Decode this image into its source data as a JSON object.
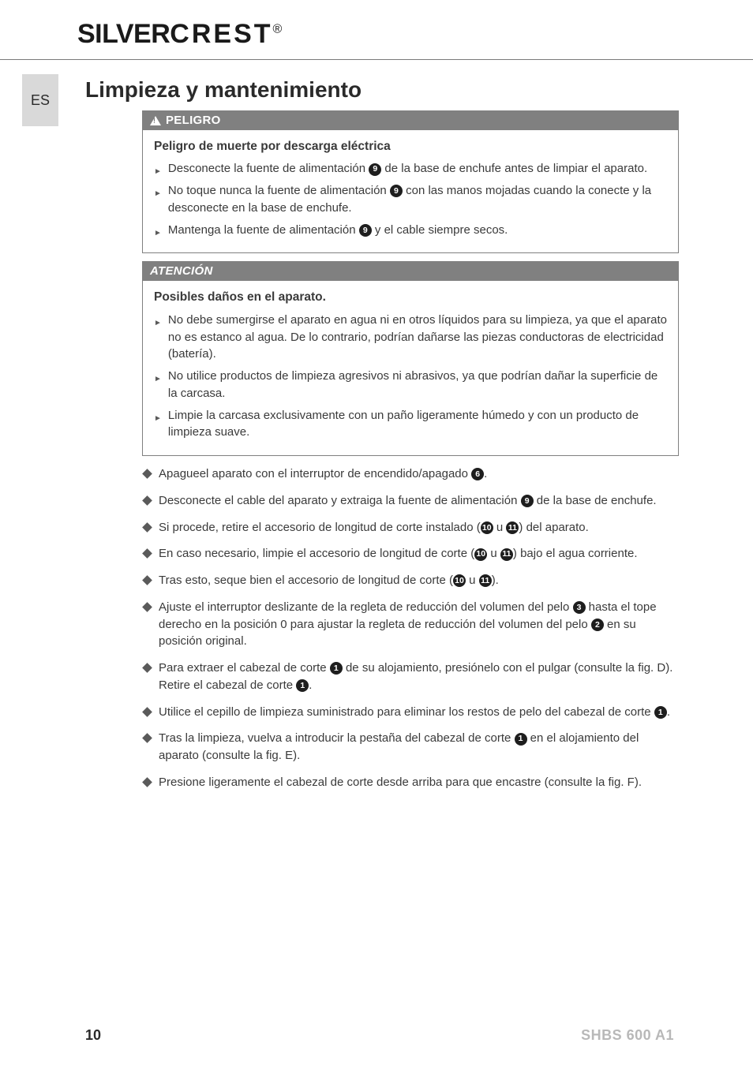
{
  "brand": {
    "main": "SILVER",
    "second": "CREST",
    "reg": "®"
  },
  "lang_tab": "ES",
  "page_title": "Limpieza y mantenimiento",
  "danger_box": {
    "header": "PELIGRO",
    "subhead": "Peligro de muerte por descarga eléctrica",
    "items": [
      {
        "pre": "Desconecte la fuente de alimentación ",
        "ref": "9",
        "post": " de la base de enchufe antes de limpiar el aparato."
      },
      {
        "pre": "No toque nunca la fuente de alimentación ",
        "ref": "9",
        "post": " con las manos mojadas cuando la conecte y la desconecte en la base de enchufe."
      },
      {
        "pre": "Mantenga la fuente de alimentación ",
        "ref": "9",
        "post": " y el cable siempre secos."
      }
    ]
  },
  "attention_box": {
    "header": "ATENCIÓN",
    "subhead": "Posibles daños en el aparato.",
    "items": [
      "No debe sumergirse el aparato en agua ni en otros líquidos para su limpieza, ya que el aparato no es estanco al agua. De lo contrario, podrían dañarse las piezas conductoras de electricidad (batería).",
      "No utilice productos de limpieza agresivos ni abrasivos, ya que podrían dañar la superficie de la carcasa.",
      "Limpie la carcasa exclusivamente con un paño ligeramente húmedo y con un producto de limpieza suave."
    ]
  },
  "steps": [
    {
      "segments": [
        {
          "t": "Apagueel aparato con el interruptor de encendido/apagado "
        },
        {
          "ref": "6"
        },
        {
          "t": "."
        }
      ]
    },
    {
      "segments": [
        {
          "t": "Desconecte el cable del aparato y extraiga la fuente de alimentación "
        },
        {
          "ref": "9"
        },
        {
          "t": " de la base de enchufe."
        }
      ]
    },
    {
      "segments": [
        {
          "t": "Si procede, retire el accesorio de longitud de corte instalado ("
        },
        {
          "ref": "10"
        },
        {
          "t": " u "
        },
        {
          "ref": "11"
        },
        {
          "t": ") del aparato."
        }
      ]
    },
    {
      "segments": [
        {
          "t": "En caso necesario, limpie el accesorio de longitud de corte ("
        },
        {
          "ref": "10"
        },
        {
          "t": " u "
        },
        {
          "ref": "11"
        },
        {
          "t": ") bajo el agua corriente."
        }
      ]
    },
    {
      "segments": [
        {
          "t": "Tras esto, seque bien el accesorio de longitud de corte ("
        },
        {
          "ref": "10"
        },
        {
          "t": " u "
        },
        {
          "ref": "11"
        },
        {
          "t": ")."
        }
      ]
    },
    {
      "segments": [
        {
          "t": "Ajuste el interruptor deslizante de la regleta de reducción del volumen del pelo "
        },
        {
          "ref": "3"
        },
        {
          "t": " hasta el tope derecho en la posición 0 para ajustar la regleta de reducción del volumen del pelo "
        },
        {
          "ref": "2"
        },
        {
          "t": " en su posición original."
        }
      ]
    },
    {
      "segments": [
        {
          "t": "Para extraer el cabezal de corte "
        },
        {
          "ref": "1"
        },
        {
          "t": " de su alojamiento, presiónelo con el pulgar (consulte la fig. D). Retire el cabezal de corte "
        },
        {
          "ref": "1"
        },
        {
          "t": "."
        }
      ]
    },
    {
      "segments": [
        {
          "t": "Utilice el cepillo de limpieza suministrado para eliminar los restos de pelo del cabezal de corte "
        },
        {
          "ref": "1"
        },
        {
          "t": "."
        }
      ]
    },
    {
      "segments": [
        {
          "t": "Tras la limpieza, vuelva a introducir la pestaña del cabezal de corte "
        },
        {
          "ref": "1"
        },
        {
          "t": " en el alojamiento del aparato (consulte la fig. E)."
        }
      ]
    },
    {
      "segments": [
        {
          "t": "Presione ligeramente el cabezal de corte desde arriba para que encastre (consulte la fig. F)."
        }
      ]
    }
  ],
  "footer": {
    "page": "10",
    "model": "SHBS 600 A1"
  },
  "colors": {
    "header_bg": "#808080",
    "tab_bg": "#d9d9d9",
    "model_color": "#b8b8b8"
  }
}
